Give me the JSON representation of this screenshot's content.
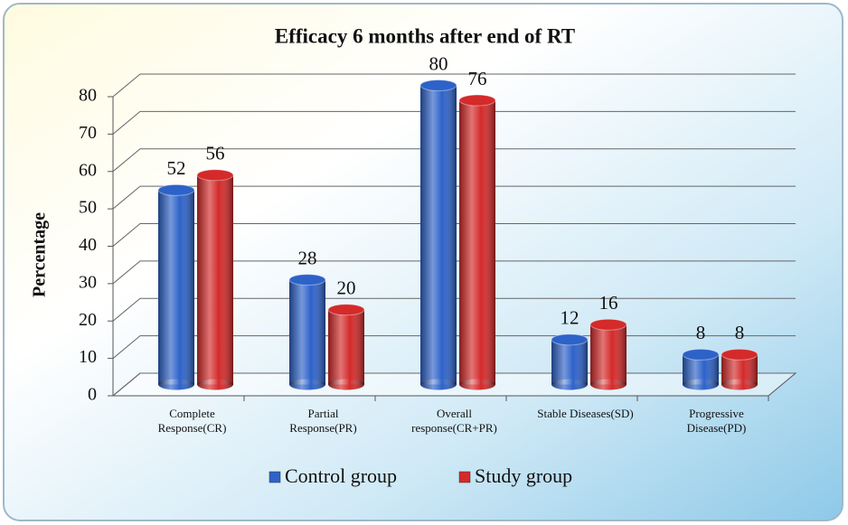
{
  "chart_data": {
    "type": "bar",
    "title": "Efficacy 6 months after end of RT",
    "ylabel": "Percentage",
    "categories": [
      "Complete\nResponse(CR)",
      "Partial\nResponse(PR)",
      "Overall\nresponse(CR+PR)",
      "Stable Diseases(SD)",
      "Progressive\nDisease(PD)"
    ],
    "series": [
      {
        "name": "Control group",
        "color": "#2d62c9",
        "values": [
          52,
          28,
          80,
          12,
          8
        ]
      },
      {
        "name": "Study group",
        "color": "#d42a2a",
        "values": [
          56,
          20,
          76,
          16,
          8
        ]
      }
    ],
    "ylim": [
      0,
      80
    ],
    "yticks": [
      0,
      10,
      20,
      30,
      40,
      50,
      60,
      70,
      80
    ],
    "grid": true
  }
}
